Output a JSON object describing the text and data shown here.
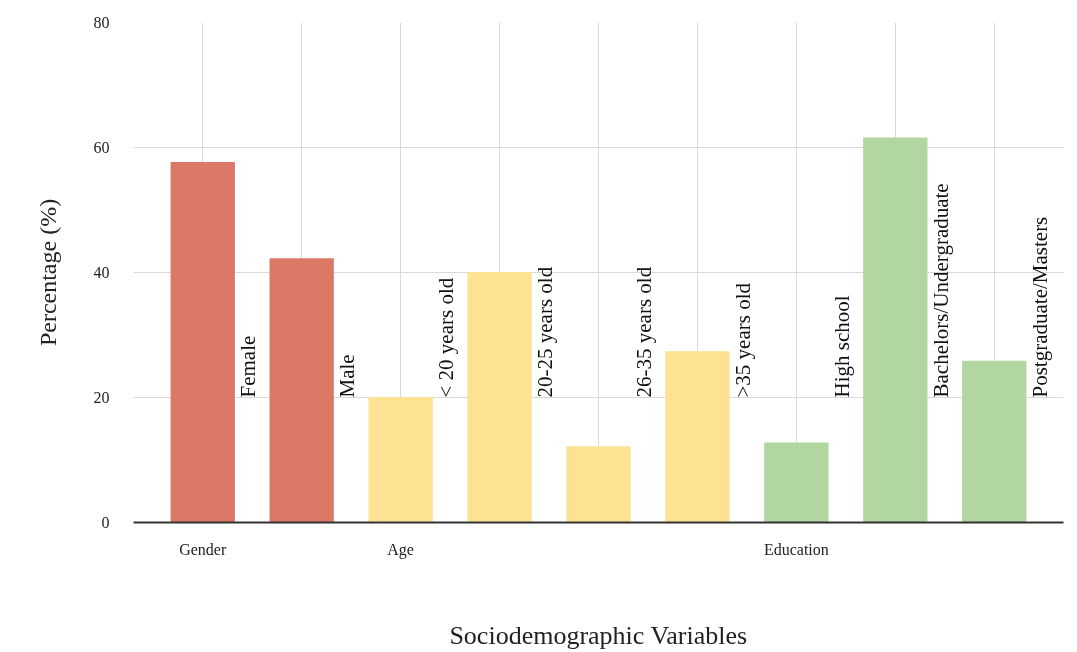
{
  "chart_data": {
    "type": "bar",
    "xlabel": "Sociodemographic Variables",
    "ylabel": "Percentage (%)",
    "categories": [
      "Gender",
      null,
      "Age",
      null,
      null,
      null,
      "Education",
      null,
      null
    ],
    "values": [
      57.7,
      42.3,
      20.1,
      40.1,
      12.2,
      27.4,
      12.8,
      61.6,
      25.9
    ],
    "colors": [
      "#dc7866",
      "#dc7866",
      "#fde293",
      "#fde293",
      "#fde293",
      "#fde293",
      "#b1d6a0",
      "#b1d6a0",
      "#b1d6a0"
    ],
    "annotations": [
      "Female",
      "Male",
      "< 20 years old",
      "20-25 years old",
      "26-35 years old",
      ">35 years old",
      "High school",
      "Bachelors/Undergraduate",
      "Postgraduate/Masters"
    ],
    "ylim": [
      0,
      80
    ],
    "yticks": [
      0,
      20,
      40,
      60,
      80
    ],
    "grid": true
  }
}
